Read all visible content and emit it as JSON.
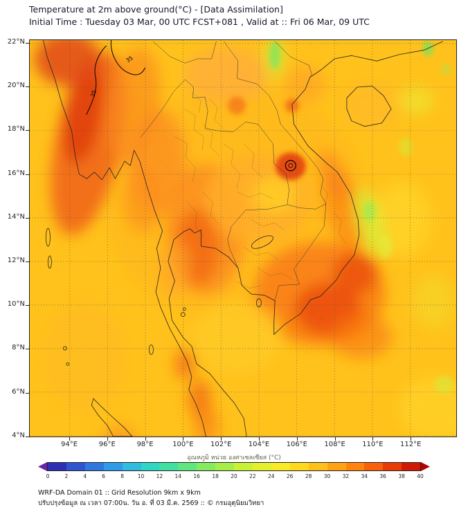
{
  "header": {
    "title": "Temperature at 2m above ground(°C) - [Data Assimilation]",
    "subtitle": "Initial Time : Tuesday 03 Mar, 00 UTC FCST+081 , Valid at :: Fri 06 Mar, 09 UTC"
  },
  "axes": {
    "lat_ticks": [
      "22°N",
      "20°N",
      "18°N",
      "16°N",
      "14°N",
      "12°N",
      "10°N",
      "8°N",
      "6°N",
      "4°N"
    ],
    "lon_ticks": [
      "94°E",
      "96°E",
      "98°E",
      "100°E",
      "102°E",
      "104°E",
      "106°E",
      "108°E",
      "110°E",
      "112°E"
    ]
  },
  "map": {
    "contour_labels": [
      "35",
      "35"
    ],
    "base_color": "#FFC21C"
  },
  "colorbar": {
    "label": "อุณหภูมิ หน่วย องศาเซลเซียส (°C)",
    "ticks": [
      "0",
      "2",
      "4",
      "6",
      "8",
      "10",
      "12",
      "14",
      "16",
      "18",
      "20",
      "22",
      "24",
      "26",
      "28",
      "30",
      "32",
      "34",
      "36",
      "38",
      "40"
    ],
    "cell_colors": [
      "#2f2fb3",
      "#2f54d0",
      "#2f78e0",
      "#2f9be8",
      "#2fbce0",
      "#2fd6c4",
      "#3fe0a0",
      "#5fe67f",
      "#84ea5f",
      "#a8ee48",
      "#c9f136",
      "#e4f02b",
      "#f8ea24",
      "#ffd81e",
      "#ffc119",
      "#ffa314",
      "#ff830e",
      "#f86009",
      "#e83b05",
      "#d11802"
    ],
    "arrow_left_color": "#6b21a8",
    "arrow_right_color": "#b30000"
  },
  "footer": {
    "line1": "WRF-DA Domain 01 :: Grid Resolution 9km x 9km",
    "line2": "ปรับปรุงข้อมูล ณ เวลา 07:00น. วัน อ. ที่ 03 มี.ค. 2569 :: © กรมอุตุนิยมวิทยา"
  }
}
